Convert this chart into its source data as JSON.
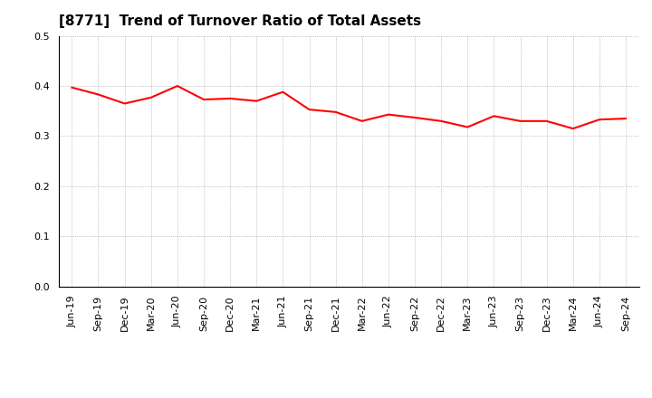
{
  "title": "[8771]  Trend of Turnover Ratio of Total Assets",
  "x_labels": [
    "Jun-19",
    "Sep-19",
    "Dec-19",
    "Mar-20",
    "Jun-20",
    "Sep-20",
    "Dec-20",
    "Mar-21",
    "Jun-21",
    "Sep-21",
    "Dec-21",
    "Mar-22",
    "Jun-22",
    "Sep-22",
    "Dec-22",
    "Mar-23",
    "Jun-23",
    "Sep-23",
    "Dec-23",
    "Mar-24",
    "Jun-24",
    "Sep-24"
  ],
  "values": [
    0.397,
    0.383,
    0.365,
    0.377,
    0.4,
    0.373,
    0.375,
    0.37,
    0.388,
    0.353,
    0.348,
    0.33,
    0.343,
    0.337,
    0.33,
    0.318,
    0.34,
    0.33,
    0.33,
    0.315,
    0.333,
    0.335
  ],
  "line_color": "#FF0000",
  "line_width": 1.5,
  "ylim": [
    0.0,
    0.5
  ],
  "yticks": [
    0.0,
    0.1,
    0.2,
    0.3,
    0.4,
    0.5
  ],
  "background_color": "#FFFFFF",
  "grid_color": "#AAAAAA",
  "title_fontsize": 11,
  "tick_fontsize": 8
}
